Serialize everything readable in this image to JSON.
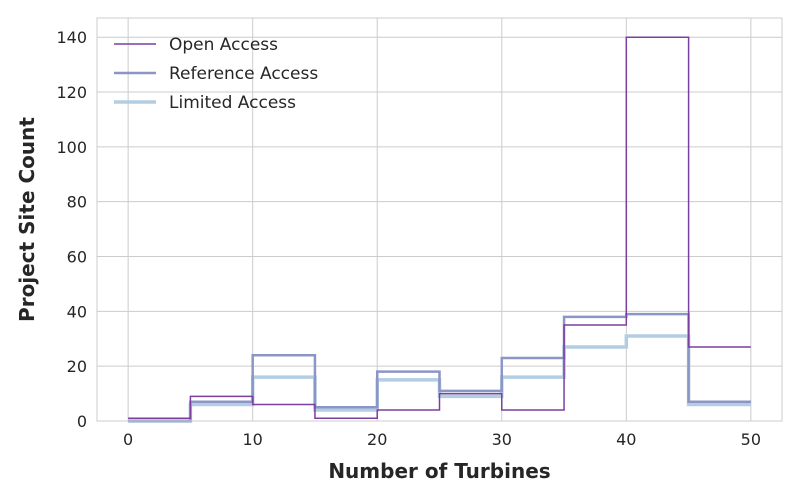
{
  "chart_data": {
    "type": "line",
    "step": "post-histogram",
    "title": "",
    "xlabel": "Number of Turbines",
    "ylabel": "Project Site Count",
    "xlim": [
      -2.5,
      52.5
    ],
    "ylim": [
      0,
      147
    ],
    "x_ticks": [
      0,
      10,
      20,
      30,
      40,
      50
    ],
    "y_ticks": [
      0,
      20,
      40,
      60,
      80,
      100,
      120,
      140
    ],
    "grid": true,
    "legend_position": "top-left",
    "bin_edges": [
      0,
      5,
      10,
      15,
      20,
      25,
      30,
      35,
      40,
      45,
      50
    ],
    "series": [
      {
        "name": "Open Access",
        "color": "#7b3fa0",
        "line_width": 1.5,
        "values": [
          1,
          9,
          6,
          1,
          4,
          10,
          4,
          35,
          140,
          27
        ]
      },
      {
        "name": "Reference Access",
        "color": "#8c96c6",
        "line_width": 2.5,
        "values": [
          0,
          7,
          24,
          5,
          18,
          11,
          23,
          38,
          39,
          7
        ]
      },
      {
        "name": "Limited Access",
        "color": "#b3cde3",
        "line_width": 3.5,
        "values": [
          0,
          6,
          16,
          4,
          15,
          9,
          16,
          27,
          31,
          6
        ]
      }
    ]
  }
}
